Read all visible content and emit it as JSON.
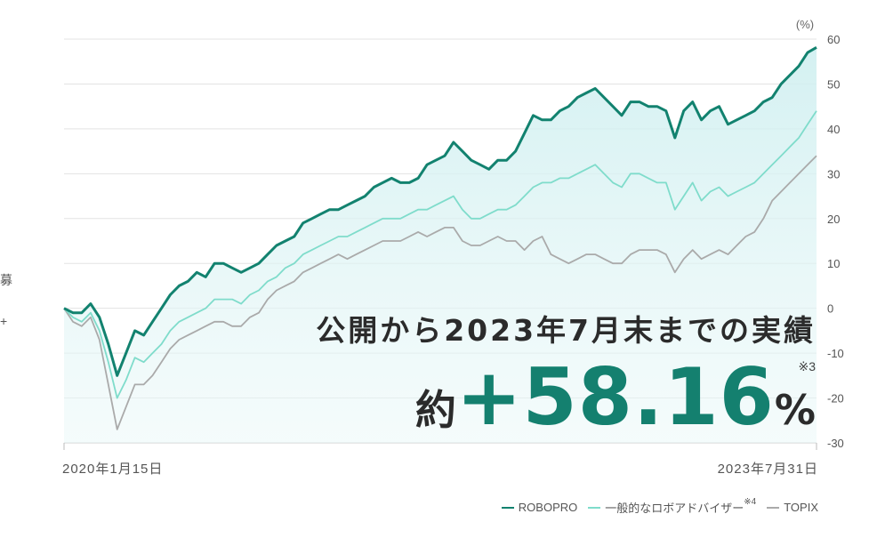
{
  "edge_fragments": [
    "募",
    "+"
  ],
  "chart_data": {
    "type": "line",
    "unit_label": "(%)",
    "ylim": [
      -30,
      60
    ],
    "yticks": [
      60,
      50,
      40,
      30,
      20,
      10,
      0,
      -10,
      -20,
      -30
    ],
    "x_start_label": "2020年1月15日",
    "x_end_label": "2023年7月31日",
    "title": "公開から2023年7月末までの実績",
    "result": {
      "prefix": "約",
      "value": "+58.16",
      "unit": "%",
      "note": "※3"
    },
    "series": [
      {
        "name": "ROBOPRO",
        "color": "#12826f",
        "values": [
          0,
          -1,
          -1,
          1,
          -2,
          -8,
          -15,
          -10,
          -5,
          -6,
          -3,
          0,
          3,
          5,
          6,
          8,
          7,
          10,
          10,
          9,
          8,
          9,
          10,
          12,
          14,
          15,
          16,
          19,
          20,
          21,
          22,
          22,
          23,
          24,
          25,
          27,
          28,
          29,
          28,
          28,
          29,
          32,
          33,
          34,
          37,
          35,
          33,
          32,
          31,
          33,
          33,
          35,
          39,
          43,
          42,
          42,
          44,
          45,
          47,
          48,
          49,
          47,
          45,
          43,
          46,
          46,
          45,
          45,
          44,
          38,
          44,
          46,
          42,
          44,
          45,
          41,
          42,
          43,
          44,
          46,
          47,
          50,
          52,
          54,
          57,
          58.16
        ]
      },
      {
        "name": "一般的なロボアドバイザー",
        "note": "※4",
        "color": "#7fdccb",
        "values": [
          0,
          -2,
          -3,
          -1,
          -5,
          -12,
          -20,
          -16,
          -11,
          -12,
          -10,
          -8,
          -5,
          -3,
          -2,
          -1,
          0,
          2,
          2,
          2,
          1,
          3,
          4,
          6,
          7,
          9,
          10,
          12,
          13,
          14,
          15,
          16,
          16,
          17,
          18,
          19,
          20,
          20,
          20,
          21,
          22,
          22,
          23,
          24,
          25,
          22,
          20,
          20,
          21,
          22,
          22,
          23,
          25,
          27,
          28,
          28,
          29,
          29,
          30,
          31,
          32,
          30,
          28,
          27,
          30,
          30,
          29,
          28,
          28,
          22,
          25,
          28,
          24,
          26,
          27,
          25,
          26,
          27,
          28,
          30,
          32,
          34,
          36,
          38,
          41,
          44
        ]
      },
      {
        "name": "TOPIX",
        "color": "#aaaaaa",
        "values": [
          0,
          -3,
          -4,
          -2,
          -7,
          -17,
          -27,
          -22,
          -17,
          -17,
          -15,
          -12,
          -9,
          -7,
          -6,
          -5,
          -4,
          -3,
          -3,
          -4,
          -4,
          -2,
          -1,
          2,
          4,
          5,
          6,
          8,
          9,
          10,
          11,
          12,
          11,
          12,
          13,
          14,
          15,
          15,
          15,
          16,
          17,
          16,
          17,
          18,
          18,
          15,
          14,
          14,
          15,
          16,
          15,
          15,
          13,
          15,
          16,
          12,
          11,
          10,
          11,
          12,
          12,
          11,
          10,
          10,
          12,
          13,
          13,
          13,
          12,
          8,
          11,
          13,
          11,
          12,
          13,
          12,
          14,
          16,
          17,
          20,
          24,
          26,
          28,
          30,
          32,
          34
        ]
      }
    ],
    "legend": [
      {
        "name": "ROBOPRO",
        "color": "#12826f",
        "note": ""
      },
      {
        "name": "一般的なロボアドバイザー",
        "color": "#7fdccb",
        "note": "※4"
      },
      {
        "name": "TOPIX",
        "color": "#aaaaaa",
        "note": ""
      }
    ]
  }
}
